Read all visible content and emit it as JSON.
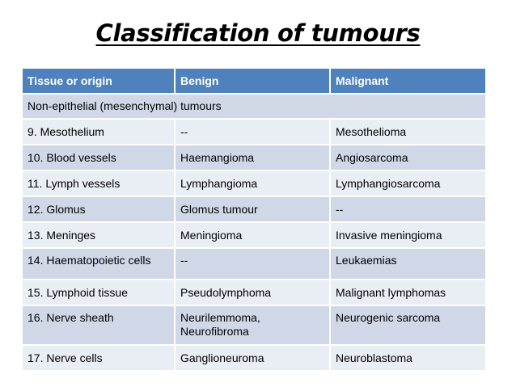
{
  "title": "Classification of tumours",
  "table": {
    "headers": [
      "Tissue or origin",
      "Benign",
      "Malignant"
    ],
    "section_label": "Non-epithelial (mesenchymal) tumours",
    "rows": [
      [
        "9. Mesothelium",
        "--",
        "Mesothelioma"
      ],
      [
        "10. Blood vessels",
        "Haemangioma",
        "Angiosarcoma"
      ],
      [
        "11. Lymph vessels",
        "Lymphangioma",
        "Lymphangiosarcoma"
      ],
      [
        "12. Glomus",
        "Glomus tumour",
        "--"
      ],
      [
        "13. Meninges",
        "Meningioma",
        "Invasive meningioma"
      ],
      [
        "14. Haematopoietic cells",
        "--",
        "Leukaemias"
      ],
      [
        "15. Lymphoid tissue",
        "Pseudolymphoma",
        "Malignant lymphomas"
      ],
      [
        "16. Nerve sheath",
        "Neurilemmoma, Neurofibroma",
        "Neurogenic sarcoma"
      ],
      [
        "17. Nerve cells",
        "Ganglioneuroma",
        "Neuroblastoma"
      ]
    ]
  },
  "colors": {
    "header_bg": "#4f81bd",
    "row_dark": "#d0d8e8",
    "row_light": "#e9edf4"
  }
}
